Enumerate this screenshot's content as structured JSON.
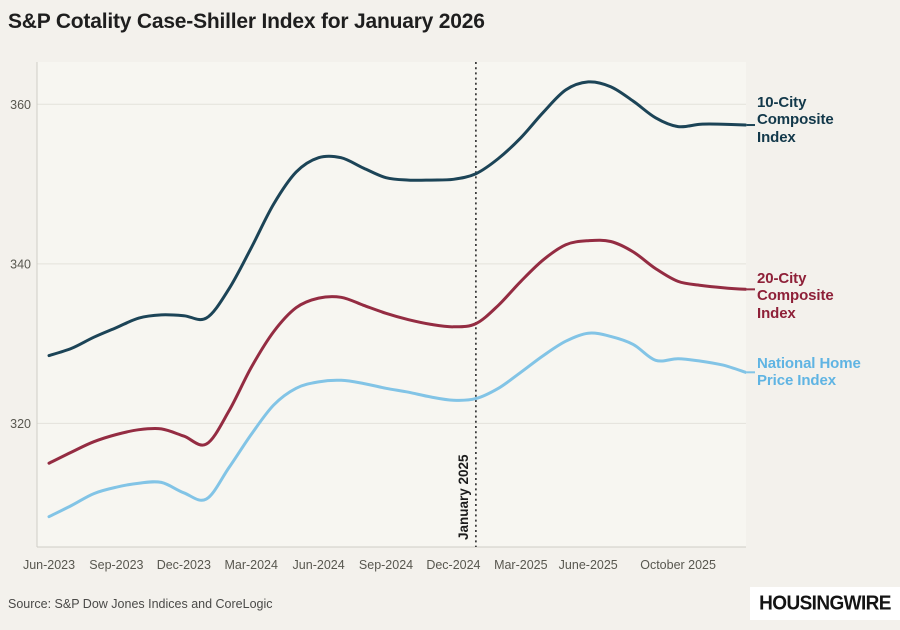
{
  "title": "S&P Cotality Case-Shiller Index for January 2026",
  "source": "Source: S&P Dow Jones Indices and CoreLogic",
  "logo": "HOUSINGWIRE",
  "colors": {
    "background": "#f3f1ec",
    "plot_background": "#f7f6f1",
    "grid": "#e4e2db",
    "axis": "#cfcdc6",
    "tick_text": "#58574f",
    "annotation": "#2b2b2b"
  },
  "annotation": {
    "label": "January 2025",
    "month_index": 19
  },
  "chart_data": {
    "type": "line",
    "title": "S&P Cotality Case-Shiller Index for January 2026",
    "x": [
      "Jun-2023",
      "Jul-2023",
      "Aug-2023",
      "Sep-2023",
      "Oct-2023",
      "Nov-2023",
      "Dec-2023",
      "Jan-2024",
      "Feb-2024",
      "Mar-2024",
      "Apr-2024",
      "May-2024",
      "Jun-2024",
      "Jul-2024",
      "Aug-2024",
      "Sep-2024",
      "Oct-2024",
      "Nov-2024",
      "Dec-2024",
      "Jan-2025",
      "Feb-2025",
      "Mar-2025",
      "Apr-2025",
      "May-2025",
      "Jun-2025",
      "Jul-2025",
      "Aug-2025",
      "Sep-2025",
      "Oct-2025",
      "Nov-2025",
      "Dec-2025",
      "Jan-2026"
    ],
    "x_ticks": [
      {
        "index": 0,
        "label": "Jun-2023"
      },
      {
        "index": 3,
        "label": "Sep-2023"
      },
      {
        "index": 6,
        "label": "Dec-2023"
      },
      {
        "index": 9,
        "label": "Mar-2024"
      },
      {
        "index": 12,
        "label": "Jun-2024"
      },
      {
        "index": 15,
        "label": "Sep-2024"
      },
      {
        "index": 18,
        "label": "Dec-2024"
      },
      {
        "index": 21,
        "label": "Mar-2025"
      },
      {
        "index": 24,
        "label": "June-2025"
      },
      {
        "index": 28,
        "label": "October 2025"
      }
    ],
    "yticks": [
      320,
      340,
      360
    ],
    "ylim": [
      304.5,
      365.3
    ],
    "grid": "horizontal",
    "legend_position": "right",
    "series": [
      {
        "name": "10-City Composite Index",
        "label_lines": [
          "10-City",
          "Composite",
          "Index"
        ],
        "color": "#1c4457",
        "label_color": "#12384a",
        "values": [
          328.5,
          329.4,
          330.8,
          332.0,
          333.2,
          333.6,
          333.5,
          333.2,
          336.8,
          342.0,
          347.5,
          351.5,
          353.3,
          353.3,
          352.0,
          350.8,
          350.5,
          350.5,
          350.6,
          351.3,
          353.2,
          355.8,
          359.0,
          361.8,
          362.8,
          362.2,
          360.4,
          358.3,
          357.2,
          357.5,
          357.5,
          357.4
        ]
      },
      {
        "name": "20-City Composite Index",
        "label_lines": [
          "20-City",
          "Composite",
          "Index"
        ],
        "color": "#942c42",
        "label_color": "#8e2038",
        "values": [
          315.0,
          316.4,
          317.7,
          318.6,
          319.2,
          319.3,
          318.4,
          317.4,
          321.5,
          327.0,
          331.5,
          334.5,
          335.7,
          335.8,
          334.8,
          333.8,
          333.0,
          332.4,
          332.1,
          332.5,
          334.8,
          337.8,
          340.5,
          342.4,
          342.9,
          342.8,
          341.5,
          339.4,
          337.8,
          337.3,
          337.0,
          336.8
        ]
      },
      {
        "name": "National Home Price Index",
        "label_lines": [
          "National Home",
          "Price Index"
        ],
        "color": "#82c4e6",
        "label_color": "#5fb4e3",
        "values": [
          308.3,
          309.7,
          311.2,
          312.0,
          312.5,
          312.6,
          311.3,
          310.5,
          314.4,
          318.6,
          322.3,
          324.4,
          325.2,
          325.4,
          325.0,
          324.4,
          323.9,
          323.3,
          322.9,
          323.1,
          324.4,
          326.4,
          328.5,
          330.3,
          331.3,
          330.9,
          329.9,
          327.9,
          328.1,
          327.8,
          327.3,
          326.4
        ]
      }
    ]
  }
}
